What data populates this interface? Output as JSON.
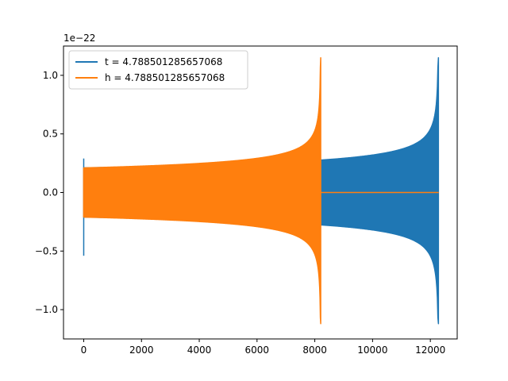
{
  "chart_data": {
    "type": "line",
    "title": "",
    "xlabel": "",
    "ylabel": "",
    "y_offset_label": "1e−22",
    "xlim": [
      -700,
      12930
    ],
    "ylim": [
      -1.25,
      1.25
    ],
    "x_ticks": [
      {
        "value": 0,
        "label": "0"
      },
      {
        "value": 2000,
        "label": "2000"
      },
      {
        "value": 4000,
        "label": "4000"
      },
      {
        "value": 6000,
        "label": "6000"
      },
      {
        "value": 8000,
        "label": "8000"
      },
      {
        "value": 10000,
        "label": "10000"
      },
      {
        "value": 12000,
        "label": "12000"
      }
    ],
    "y_ticks": [
      {
        "value": -1.0,
        "label": "−1.0"
      },
      {
        "value": -0.5,
        "label": "−0.5"
      },
      {
        "value": 0.0,
        "label": "0.0"
      },
      {
        "value": 0.5,
        "label": "0.5"
      },
      {
        "value": 1.0,
        "label": "1.0"
      }
    ],
    "grid": false,
    "legend_position": "upper-left",
    "series": [
      {
        "name": "t = 4.788501285657068",
        "color": "#1f77b4",
        "kind": "chirp",
        "x_start": 0,
        "x_merger": 12280,
        "x_end": 12290,
        "amp_start": 0.21,
        "amp_mid": 0.24,
        "amp_peak": 1.15,
        "peak_min": -1.12,
        "start_spike_max": 0.29,
        "start_spike_min": -0.54
      },
      {
        "name": "h = 4.788501285657068",
        "color": "#ff7f0e",
        "kind": "chirp",
        "x_start": 0,
        "x_merger": 8205,
        "x_end": 12290,
        "amp_start": 0.21,
        "amp_mid": 0.24,
        "amp_peak": 1.15,
        "peak_min": -1.12,
        "start_spike_max": 0.21,
        "start_spike_min": -0.21
      }
    ]
  }
}
